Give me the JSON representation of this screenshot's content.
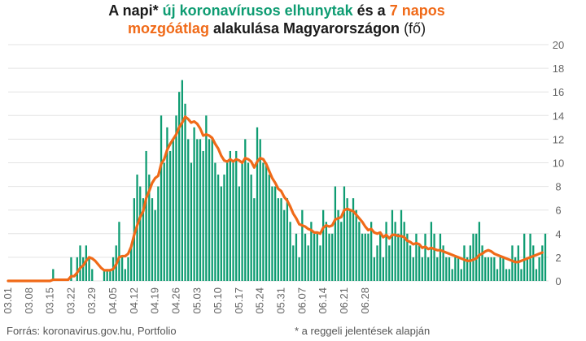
{
  "title": {
    "p1": "A napi* ",
    "p2": "új koronavírusos elhunytak",
    "p3": " és a ",
    "p4": "7 napos",
    "p5": "mozgóátlag",
    "p6": " alakulása Magyarországon ",
    "p7": "(fő)"
  },
  "footer": {
    "source": "Forrás: koronavirus.gov.hu, Portfolio",
    "note": "* a reggeli jelentések alapján"
  },
  "colors": {
    "bars": "#0e9c72",
    "line": "#f06a18",
    "grid": "#e3e3e3",
    "axis_text": "#666666"
  },
  "chart_data": {
    "type": "bar",
    "x_start": "03.01",
    "x_end": "06.30",
    "xticks": [
      "03.01",
      "03.08",
      "03.15",
      "03.22",
      "03.29",
      "04.05",
      "04.12",
      "04.19",
      "04.26",
      "05.03",
      "05.10",
      "05.17",
      "05.24",
      "05.31",
      "06.07",
      "06.14",
      "06.21",
      "06.28"
    ],
    "ylim": [
      0,
      20
    ],
    "yticks": [
      0,
      2,
      4,
      6,
      8,
      10,
      12,
      14,
      16,
      18,
      20
    ],
    "y_axis_position": "right",
    "grid": true,
    "series": [
      {
        "name": "új koronavírusos elhunytak",
        "type": "bar",
        "values": [
          0,
          0,
          0,
          0,
          0,
          0,
          0,
          0,
          0,
          0,
          0,
          0,
          0,
          0,
          0,
          1,
          0,
          0,
          0,
          0,
          0,
          2,
          0,
          2,
          3,
          2,
          3,
          2,
          1,
          0,
          0,
          0,
          1,
          1,
          1,
          2,
          3,
          5,
          2,
          1,
          2,
          3,
          7,
          9,
          8,
          7,
          11,
          9,
          7,
          6,
          8,
          14,
          10,
          13,
          11,
          12,
          14,
          16,
          17,
          15,
          12,
          10,
          13,
          12,
          12,
          11,
          14,
          12,
          12,
          10,
          9,
          8,
          9,
          10,
          11,
          10,
          11,
          8,
          10,
          12,
          10,
          9,
          7,
          13,
          12,
          10,
          10,
          9,
          8,
          8,
          7,
          7,
          6,
          7,
          5,
          3,
          4,
          2,
          6,
          4,
          3,
          5,
          4,
          4,
          3,
          6,
          5,
          4,
          4,
          8,
          6,
          5,
          8,
          7,
          6,
          7,
          6,
          5,
          4,
          4,
          4,
          5,
          2,
          3,
          4,
          2,
          5,
          3,
          6,
          5,
          4,
          6,
          5,
          4,
          3,
          2,
          4,
          3,
          2,
          4,
          2,
          5,
          4,
          2,
          4,
          3,
          2,
          2,
          1,
          2,
          2,
          1,
          3,
          2,
          3,
          4,
          4,
          5,
          3,
          2,
          2,
          2,
          2,
          1,
          2,
          2,
          1,
          1,
          3,
          2,
          3,
          1,
          4,
          2,
          4,
          3,
          1,
          2,
          3,
          4
        ]
      },
      {
        "name": "7 napos mozgóátlag",
        "type": "line",
        "values": [
          0,
          0,
          0,
          0,
          0,
          0,
          0,
          0,
          0,
          0,
          0,
          0,
          0,
          0,
          0,
          0.1,
          0.1,
          0.1,
          0.1,
          0.1,
          0.1,
          0.4,
          0.4,
          0.7,
          1.1,
          1.3,
          1.7,
          2.0,
          1.9,
          1.7,
          1.4,
          1.1,
          0.9,
          0.9,
          0.9,
          1.0,
          1.4,
          2.0,
          2.1,
          2.1,
          2.3,
          2.9,
          3.9,
          4.7,
          5.4,
          5.9,
          7.0,
          7.6,
          8.3,
          8.7,
          8.9,
          9.9,
          10.3,
          11.1,
          11.6,
          12.0,
          12.4,
          13.0,
          13.4,
          13.9,
          13.7,
          13.4,
          13.5,
          13.3,
          12.9,
          12.3,
          12.4,
          12.3,
          12.1,
          11.6,
          11.2,
          10.6,
          10.2,
          10.1,
          10.3,
          10.1,
          10.3,
          10.2,
          10.0,
          10.4,
          10.3,
          10.1,
          9.6,
          10.1,
          10.4,
          10.3,
          9.9,
          9.3,
          8.7,
          8.3,
          7.8,
          7.6,
          7.1,
          6.8,
          6.3,
          5.7,
          5.3,
          4.8,
          4.7,
          4.6,
          4.4,
          4.3,
          4.1,
          4.1,
          4.0,
          4.5,
          4.7,
          4.6,
          4.7,
          5.2,
          5.3,
          5.4,
          6.0,
          6.1,
          6.0,
          5.9,
          5.6,
          5.3,
          5.0,
          4.6,
          4.3,
          4.4,
          4.1,
          4.0,
          4.1,
          3.7,
          3.9,
          3.6,
          3.9,
          3.9,
          3.8,
          3.8,
          3.7,
          3.4,
          3.3,
          3.1,
          3.2,
          3.1,
          2.8,
          2.9,
          2.7,
          2.8,
          2.7,
          2.6,
          2.6,
          2.5,
          2.4,
          2.3,
          2.2,
          2.1,
          2.0,
          1.9,
          1.8,
          1.7,
          1.7,
          1.8,
          1.9,
          2.2,
          2.3,
          2.5,
          2.6,
          2.5,
          2.3,
          2.2,
          2.1,
          2.0,
          1.9,
          1.8,
          1.7,
          1.6,
          1.6,
          1.7,
          1.8,
          1.9,
          2.0,
          2.1,
          2.2,
          2.3,
          2.4
        ]
      }
    ]
  }
}
